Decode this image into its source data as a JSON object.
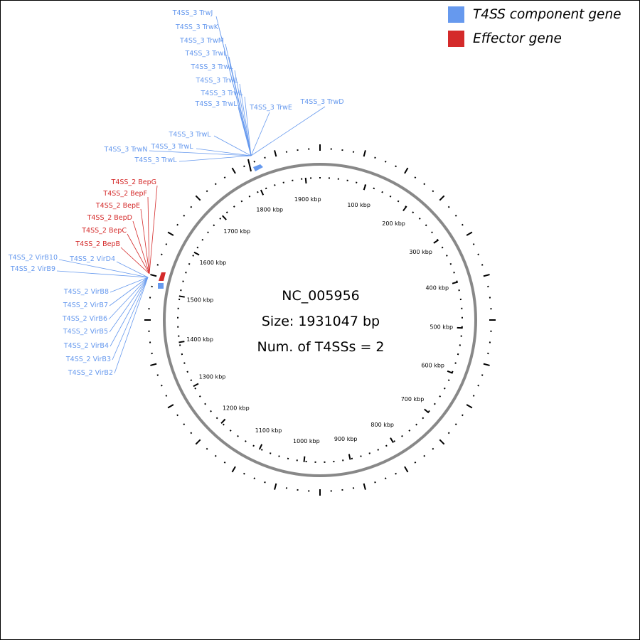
{
  "legend": {
    "items": [
      {
        "label": "T4SS component gene",
        "color": "#6699ee"
      },
      {
        "label": "Effector gene",
        "color": "#d42a2a"
      }
    ]
  },
  "center": {
    "accession": "NC_005956",
    "size": "Size: 1931047 bp",
    "count": "Num. of T4SSs = 2"
  },
  "genome_length_bp": 1931047,
  "colors": {
    "component": "#6699ee",
    "effector": "#d42a2a",
    "backbone": "#888888"
  },
  "scale_labels": [
    "100 kbp",
    "200 kbp",
    "300 kbp",
    "400 kbp",
    "500 kbp",
    "600 kbp",
    "700 kbp",
    "800 kbp",
    "900 kbp",
    "1000 kbp",
    "1100 kbp",
    "1200 kbp",
    "1300 kbp",
    "1400 kbp",
    "1500 kbp",
    "1600 kbp",
    "1700 kbp",
    "1800 kbp",
    "1900 kbp"
  ],
  "t4ss_3_genes": [
    "T4SS_3 TrwJ",
    "T4SS_3 TrwK",
    "T4SS_3 TrwM",
    "T4SS_3 TrwL",
    "T4SS_3 TrwL",
    "T4SS_3 TrwL",
    "T4SS_3 TrwL",
    "T4SS_3 TrwL",
    "T4SS_3 TrwE",
    "T4SS_3 TrwD",
    "T4SS_3 TrwL",
    "T4SS_3 TrwN",
    "T4SS_3 TrwL",
    "T4SS_3 TrwL"
  ],
  "t4ss_2_effectors": [
    "T4SS_2 BepG",
    "T4SS_2 BepF",
    "T4SS_2 BepE",
    "T4SS_2 BepD",
    "T4SS_2 BepC",
    "T4SS_2 BepB"
  ],
  "t4ss_2_components": [
    "T4SS_2 VirB10",
    "T4SS_2 VirD4",
    "T4SS_2 VirB9",
    "T4SS_2 VirB8",
    "T4SS_2 VirB7",
    "T4SS_2 VirB6",
    "T4SS_2 VirB5",
    "T4SS_2 VirB4",
    "T4SS_2 VirB3",
    "T4SS_2 VirB2"
  ]
}
